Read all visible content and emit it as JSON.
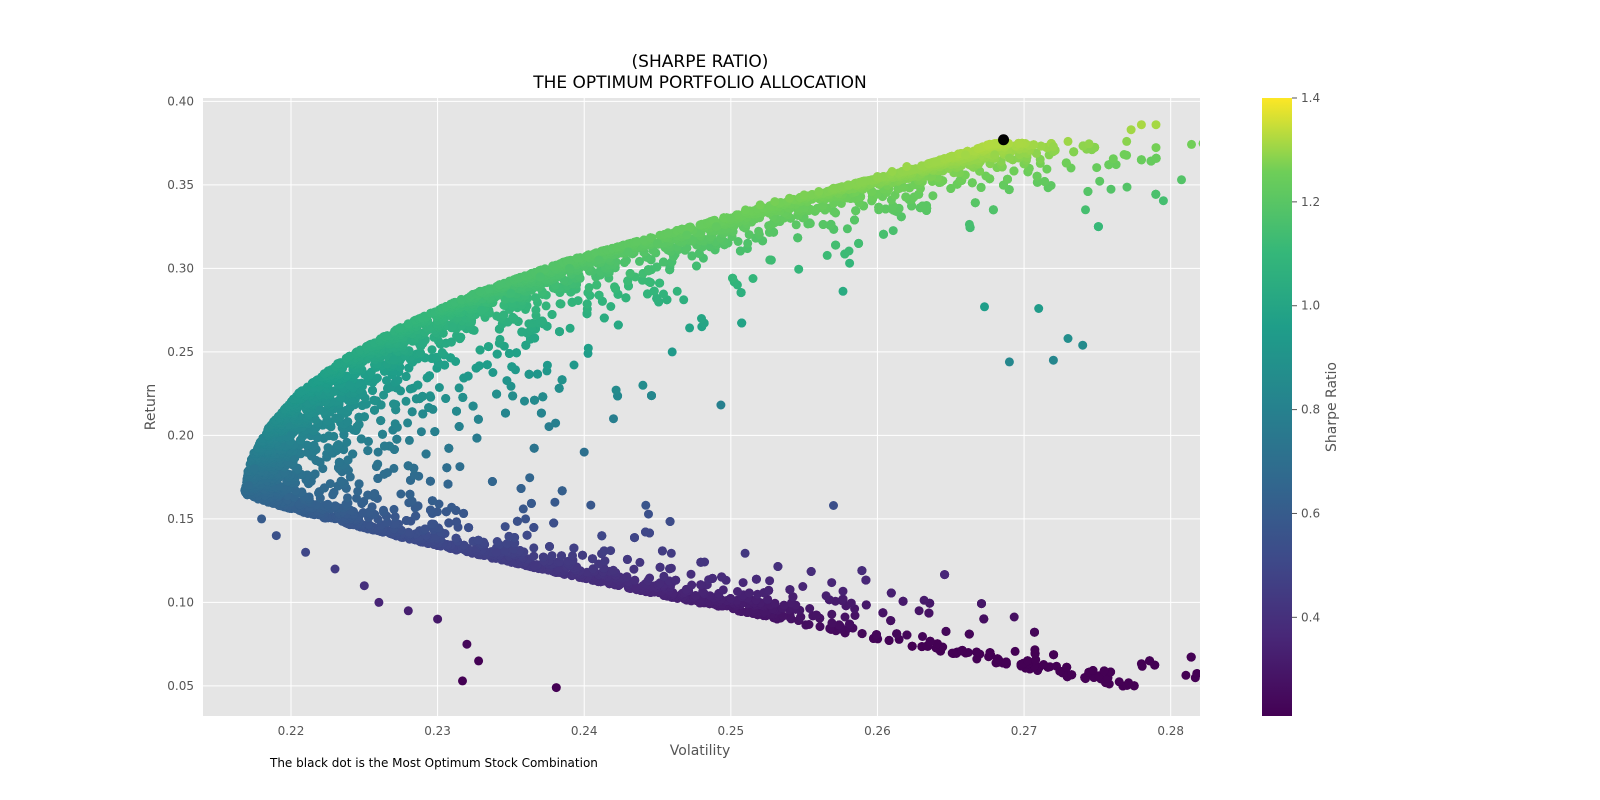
{
  "chart_data": {
    "type": "scatter",
    "title": [
      "(SHARPE RATIO)",
      "THE OPTIMUM PORTFOLIO ALLOCATION"
    ],
    "xlabel": "Volatility",
    "ylabel": "Return",
    "xlim": [
      0.214,
      0.282
    ],
    "ylim": [
      0.032,
      0.402
    ],
    "xticks": [
      "0.22",
      "0.23",
      "0.24",
      "0.25",
      "0.26",
      "0.27",
      "0.28"
    ],
    "yticks": [
      "0.05",
      "0.10",
      "0.15",
      "0.20",
      "0.25",
      "0.30",
      "0.35",
      "0.40"
    ],
    "colorbar": {
      "label": "Sharpe Ratio",
      "range": [
        0.21,
        1.4
      ],
      "ticks": [
        "0.4",
        "0.6",
        "0.8",
        "1.0",
        "1.2",
        "1.4"
      ],
      "colormap": "viridis"
    },
    "grid": true,
    "background": "#e5e5e5",
    "optimum_point": {
      "x": 0.2686,
      "y": 0.377,
      "color": "#000000"
    },
    "envelope": {
      "description_points": [
        [
          0.2168,
          0.165
        ],
        [
          0.2172,
          0.185
        ],
        [
          0.2185,
          0.205
        ],
        [
          0.2205,
          0.225
        ],
        [
          0.2235,
          0.245
        ],
        [
          0.2275,
          0.265
        ],
        [
          0.2325,
          0.285
        ],
        [
          0.239,
          0.305
        ],
        [
          0.246,
          0.322
        ],
        [
          0.2545,
          0.342
        ],
        [
          0.2625,
          0.36
        ],
        [
          0.2686,
          0.377
        ]
      ]
    },
    "series": [
      {
        "values": [
          [
            0.2171,
            0.17
          ],
          [
            0.2175,
            0.18
          ],
          [
            0.218,
            0.15
          ],
          [
            0.219,
            0.14
          ],
          [
            0.22,
            0.2
          ],
          [
            0.221,
            0.13
          ],
          [
            0.222,
            0.215
          ],
          [
            0.223,
            0.12
          ],
          [
            0.224,
            0.23
          ],
          [
            0.225,
            0.11
          ],
          [
            0.226,
            0.1
          ],
          [
            0.227,
            0.245
          ],
          [
            0.228,
            0.095
          ],
          [
            0.229,
            0.255
          ],
          [
            0.23,
            0.09
          ],
          [
            0.231,
            0.265
          ],
          [
            0.232,
            0.075
          ],
          [
            0.233,
            0.275
          ],
          [
            0.234,
            0.13
          ],
          [
            0.235,
            0.285
          ],
          [
            0.236,
            0.15
          ],
          [
            0.237,
            0.295
          ],
          [
            0.238,
            0.16
          ],
          [
            0.239,
            0.3
          ],
          [
            0.24,
            0.19
          ],
          [
            0.241,
            0.305
          ],
          [
            0.242,
            0.21
          ],
          [
            0.243,
            0.31
          ],
          [
            0.244,
            0.23
          ],
          [
            0.245,
            0.315
          ],
          [
            0.246,
            0.25
          ],
          [
            0.247,
            0.32
          ],
          [
            0.248,
            0.27
          ],
          [
            0.249,
            0.325
          ],
          [
            0.25,
            0.33
          ],
          [
            0.251,
            0.335
          ],
          [
            0.252,
            0.338
          ],
          [
            0.253,
            0.34
          ],
          [
            0.254,
            0.342
          ],
          [
            0.255,
            0.344
          ],
          [
            0.256,
            0.346
          ],
          [
            0.257,
            0.348
          ],
          [
            0.258,
            0.35
          ],
          [
            0.259,
            0.352
          ],
          [
            0.26,
            0.355
          ],
          [
            0.261,
            0.358
          ],
          [
            0.262,
            0.361
          ],
          [
            0.264,
            0.364
          ],
          [
            0.265,
            0.367
          ],
          [
            0.266,
            0.368
          ],
          [
            0.268,
            0.368
          ],
          [
            0.269,
            0.366
          ],
          [
            0.271,
            0.276
          ],
          [
            0.273,
            0.258
          ],
          [
            0.274,
            0.254
          ],
          [
            0.272,
            0.245
          ],
          [
            0.269,
            0.244
          ],
          [
            0.2673,
            0.277
          ],
          [
            0.272,
            0.373
          ],
          [
            0.273,
            0.376
          ],
          [
            0.277,
            0.376
          ],
          [
            0.2773,
            0.383
          ],
          [
            0.278,
            0.386
          ],
          [
            0.279,
            0.386
          ],
          [
            0.257,
            0.158
          ],
          [
            0.2418,
            0.131
          ],
          [
            0.2366,
            0.122
          ],
          [
            0.2381,
            0.049
          ],
          [
            0.2328,
            0.065
          ],
          [
            0.2317,
            0.053
          ]
        ]
      }
    ]
  },
  "caption": "The black dot is the Most Optimum Stock Combination"
}
